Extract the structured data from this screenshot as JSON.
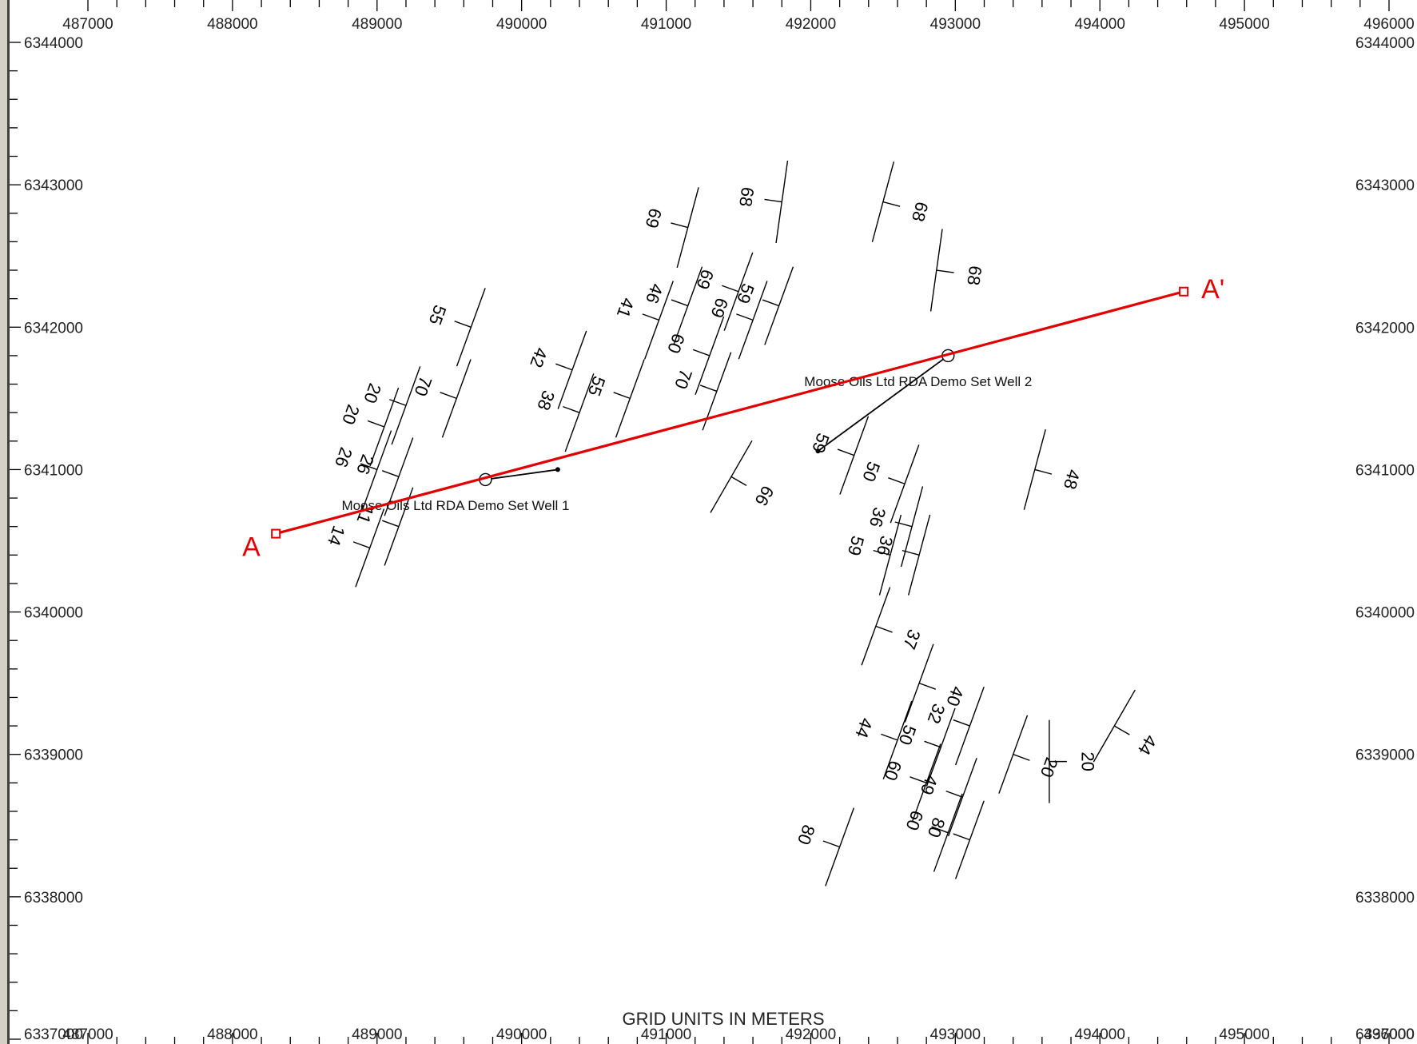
{
  "map": {
    "x_range": [
      487000,
      496000
    ],
    "y_range": [
      6337000,
      6344000
    ],
    "x_ticks": [
      487000,
      488000,
      489000,
      490000,
      491000,
      492000,
      493000,
      494000,
      495000,
      496000
    ],
    "y_ticks": [
      6344000,
      6343000,
      6342000,
      6341000,
      6340000,
      6339000,
      6338000,
      6337000
    ],
    "axis_title": "GRID UNITS IN METERS",
    "colors": {
      "section_line": "#e00000",
      "ink": "#000000",
      "frame": "#d4d0c8"
    }
  },
  "section_line": {
    "start_label": "A",
    "end_label": "A'",
    "start": [
      488300,
      6340550
    ],
    "end": [
      494580,
      6342250
    ]
  },
  "wells": [
    {
      "name": "Moose Oils Ltd RDA Demo Set Well 1",
      "x": 489750,
      "y": 6340930,
      "path": [
        [
          489750,
          6340930
        ],
        [
          490250,
          6341000
        ]
      ]
    },
    {
      "name": "Moose Oils Ltd RDA Demo Set Well 2",
      "x": 492950,
      "y": 6341800,
      "path": [
        [
          492950,
          6341800
        ],
        [
          492050,
          6341130
        ]
      ]
    }
  ],
  "dip_symbols": [
    {
      "x": 491150,
      "y": 6342700,
      "strike": 15,
      "dip_dir": 270,
      "dip": "69"
    },
    {
      "x": 491800,
      "y": 6342880,
      "strike": 8,
      "dip_dir": 270,
      "dip": "68"
    },
    {
      "x": 492500,
      "y": 6342880,
      "strike": 15,
      "dip_dir": 90,
      "dip": "68"
    },
    {
      "x": 492870,
      "y": 6342400,
      "strike": 8,
      "dip_dir": 90,
      "dip": "68"
    },
    {
      "x": 491500,
      "y": 6342250,
      "strike": 20,
      "dip_dir": 270,
      "dip": "69"
    },
    {
      "x": 491780,
      "y": 6342150,
      "strike": 20,
      "dip_dir": 270,
      "dip": "59"
    },
    {
      "x": 491600,
      "y": 6342050,
      "strike": 20,
      "dip_dir": 270,
      "dip": "69"
    },
    {
      "x": 491150,
      "y": 6342150,
      "strike": 20,
      "dip_dir": 270,
      "dip": "46"
    },
    {
      "x": 490950,
      "y": 6342050,
      "strike": 20,
      "dip_dir": 270,
      "dip": "41"
    },
    {
      "x": 491300,
      "y": 6341800,
      "strike": 20,
      "dip_dir": 270,
      "dip": "60"
    },
    {
      "x": 491350,
      "y": 6341550,
      "strike": 20,
      "dip_dir": 270,
      "dip": "70"
    },
    {
      "x": 490750,
      "y": 6341500,
      "strike": 20,
      "dip_dir": 270,
      "dip": "55"
    },
    {
      "x": 490350,
      "y": 6341700,
      "strike": 20,
      "dip_dir": 270,
      "dip": "42"
    },
    {
      "x": 490400,
      "y": 6341400,
      "strike": 20,
      "dip_dir": 270,
      "dip": "38"
    },
    {
      "x": 489650,
      "y": 6342000,
      "strike": 20,
      "dip_dir": 270,
      "dip": "55"
    },
    {
      "x": 489550,
      "y": 6341500,
      "strike": 20,
      "dip_dir": 270,
      "dip": "70"
    },
    {
      "x": 489200,
      "y": 6341450,
      "strike": 20,
      "dip_dir": 270,
      "dip": "20"
    },
    {
      "x": 489050,
      "y": 6341300,
      "strike": 20,
      "dip_dir": 270,
      "dip": "20"
    },
    {
      "x": 489000,
      "y": 6341000,
      "strike": 20,
      "dip_dir": 270,
      "dip": "26"
    },
    {
      "x": 489150,
      "y": 6340950,
      "strike": 20,
      "dip_dir": 270,
      "dip": "26"
    },
    {
      "x": 489150,
      "y": 6340600,
      "strike": 20,
      "dip_dir": 270,
      "dip": "11"
    },
    {
      "x": 488950,
      "y": 6340450,
      "strike": 20,
      "dip_dir": 270,
      "dip": "14"
    },
    {
      "x": 491450,
      "y": 6340950,
      "strike": 30,
      "dip_dir": 90,
      "dip": "66"
    },
    {
      "x": 492300,
      "y": 6341100,
      "strike": 20,
      "dip_dir": 270,
      "dip": "59"
    },
    {
      "x": 492650,
      "y": 6340900,
      "strike": 20,
      "dip_dir": 270,
      "dip": "50"
    },
    {
      "x": 492700,
      "y": 6340600,
      "strike": 15,
      "dip_dir": 270,
      "dip": "36"
    },
    {
      "x": 492550,
      "y": 6340400,
      "strike": 15,
      "dip_dir": 270,
      "dip": "59"
    },
    {
      "x": 492750,
      "y": 6340400,
      "strike": 15,
      "dip_dir": 270,
      "dip": "36"
    },
    {
      "x": 493550,
      "y": 6341000,
      "strike": 15,
      "dip_dir": 90,
      "dip": "48"
    },
    {
      "x": 492450,
      "y": 6339900,
      "strike": 20,
      "dip_dir": 90,
      "dip": "37"
    },
    {
      "x": 492750,
      "y": 6339500,
      "strike": 20,
      "dip_dir": 90,
      "dip": "40"
    },
    {
      "x": 492600,
      "y": 6339100,
      "strike": 20,
      "dip_dir": 270,
      "dip": "44"
    },
    {
      "x": 492900,
      "y": 6339050,
      "strike": 20,
      "dip_dir": 270,
      "dip": "50"
    },
    {
      "x": 492800,
      "y": 6338800,
      "strike": 20,
      "dip_dir": 270,
      "dip": "60"
    },
    {
      "x": 493050,
      "y": 6338700,
      "strike": 20,
      "dip_dir": 270,
      "dip": "49"
    },
    {
      "x": 493100,
      "y": 6339200,
      "strike": 20,
      "dip_dir": 270,
      "dip": "32"
    },
    {
      "x": 493400,
      "y": 6339000,
      "strike": 20,
      "dip_dir": 90,
      "dip": "20"
    },
    {
      "x": 493650,
      "y": 6338950,
      "strike": 0,
      "dip_dir": 90,
      "dip": "20"
    },
    {
      "x": 494100,
      "y": 6339200,
      "strike": 30,
      "dip_dir": 90,
      "dip": "44"
    },
    {
      "x": 492950,
      "y": 6338450,
      "strike": 20,
      "dip_dir": 270,
      "dip": "60"
    },
    {
      "x": 493100,
      "y": 6338400,
      "strike": 20,
      "dip_dir": 270,
      "dip": "80"
    },
    {
      "x": 492200,
      "y": 6338350,
      "strike": 20,
      "dip_dir": 270,
      "dip": "80"
    }
  ]
}
